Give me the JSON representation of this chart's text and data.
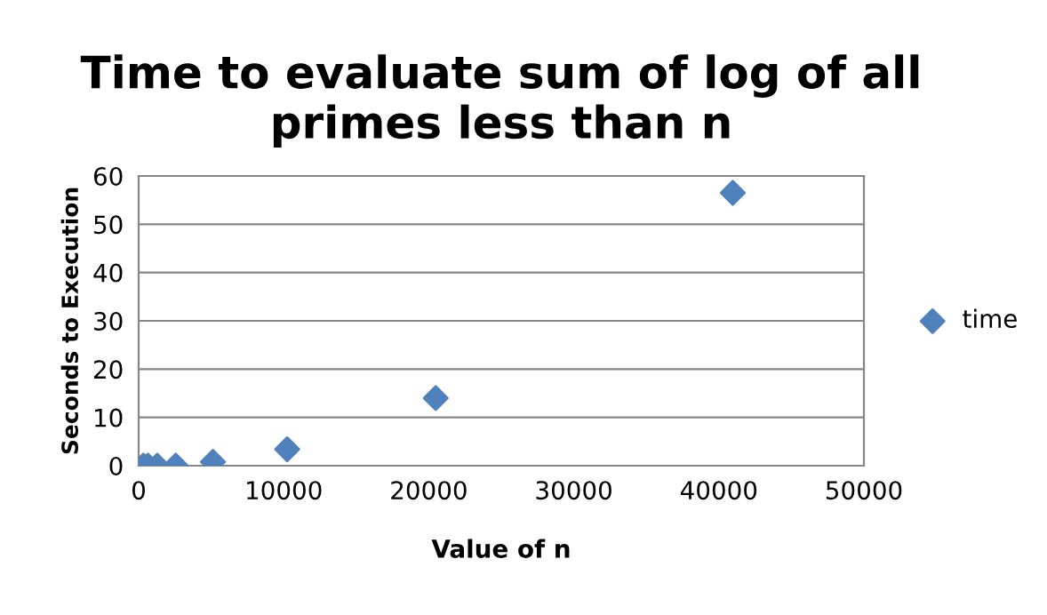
{
  "chart_data": {
    "type": "scatter",
    "title": "Time to evaluate sum of log of all primes less than n",
    "xlabel": "Value of n",
    "ylabel": "Seconds to Execution",
    "series": [
      {
        "name": "time",
        "color": "#4f81bd",
        "x": [
          320,
          640,
          1280,
          2560,
          5120,
          10240,
          20480,
          40960
        ],
        "values": [
          0,
          0,
          0,
          0,
          0.8,
          3.4,
          14,
          56.5
        ]
      }
    ],
    "xlim": [
      0,
      50000
    ],
    "xticks": [
      0,
      10000,
      20000,
      30000,
      40000,
      50000
    ],
    "ylim": [
      0,
      60
    ],
    "yticks": [
      0,
      10,
      20,
      30,
      40,
      50,
      60
    ],
    "grid": "y",
    "legend": "right",
    "marker": "diamond"
  }
}
